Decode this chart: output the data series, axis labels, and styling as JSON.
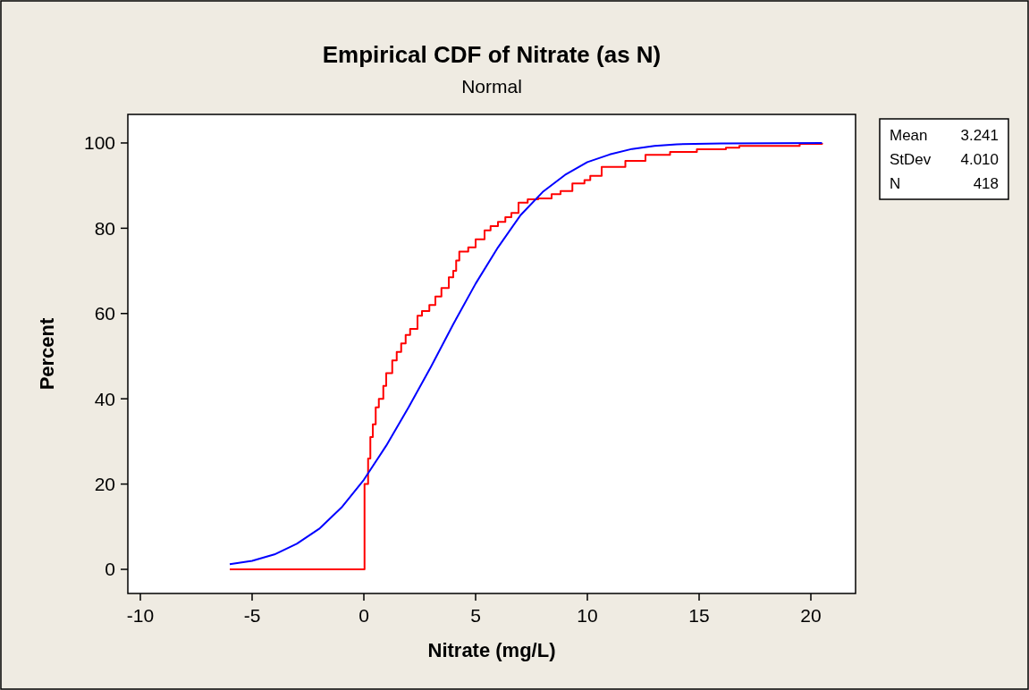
{
  "chart_data": {
    "type": "line",
    "title": "Empirical CDF of Nitrate (as N)",
    "subtitle": "Normal",
    "xlabel": "Nitrate (mg/L)",
    "ylabel": "Percent",
    "xlim": [
      -10.56,
      22
    ],
    "xticks": [
      -10,
      -5,
      0,
      5,
      10,
      15,
      20
    ],
    "ylim": [
      -5.66,
      106.7
    ],
    "yticks": [
      0,
      20,
      40,
      60,
      80,
      100
    ],
    "grid": false,
    "annotations": [
      "Mean 3.241",
      "StDev 4.010",
      "N 418"
    ],
    "series": [
      {
        "type": "step",
        "color": "#ff0000",
        "x": [
          -6,
          0.03,
          0.19,
          0.29,
          0.4,
          0.53,
          0.67,
          0.87,
          1.0,
          1.27,
          1.47,
          1.67,
          1.87,
          2.07,
          2.4,
          2.6,
          2.93,
          3.2,
          3.47,
          3.8,
          4.0,
          4.13,
          4.27,
          4.67,
          5.0,
          5.4,
          5.67,
          6.0,
          6.33,
          6.6,
          6.92,
          7.33,
          7.8,
          8.4,
          8.8,
          9.33,
          9.87,
          10.13,
          10.64,
          11.7,
          12.6,
          13.7,
          14.9,
          16.2,
          16.8,
          19.5,
          20.5
        ],
        "values": [
          0,
          20,
          26,
          31,
          34,
          38,
          40,
          43,
          46,
          49,
          51,
          53,
          55,
          56.4,
          59.5,
          60.6,
          62,
          64,
          66,
          68.5,
          70,
          72.4,
          74.5,
          75.5,
          77.4,
          79.5,
          80.5,
          81.5,
          82.6,
          83.6,
          86,
          86.8,
          87,
          88,
          88.7,
          90.5,
          91.3,
          92.3,
          94.4,
          95.8,
          97.2,
          97.9,
          98.5,
          98.9,
          99.3,
          99.8,
          100
        ]
      },
      {
        "color": "#0000ff",
        "x": [
          -6,
          -5,
          -4,
          -3,
          -2,
          -1,
          0,
          1,
          2,
          3,
          4,
          5,
          6,
          7,
          8,
          9,
          10,
          11,
          12,
          13,
          14,
          16,
          20.5
        ],
        "values": [
          1.2,
          2,
          3.5,
          6,
          9.5,
          14.5,
          21,
          29,
          38,
          47.5,
          57.5,
          67,
          75.5,
          83,
          88.5,
          92.5,
          95.5,
          97.3,
          98.6,
          99.3,
          99.7,
          99.9,
          100
        ]
      }
    ]
  }
}
